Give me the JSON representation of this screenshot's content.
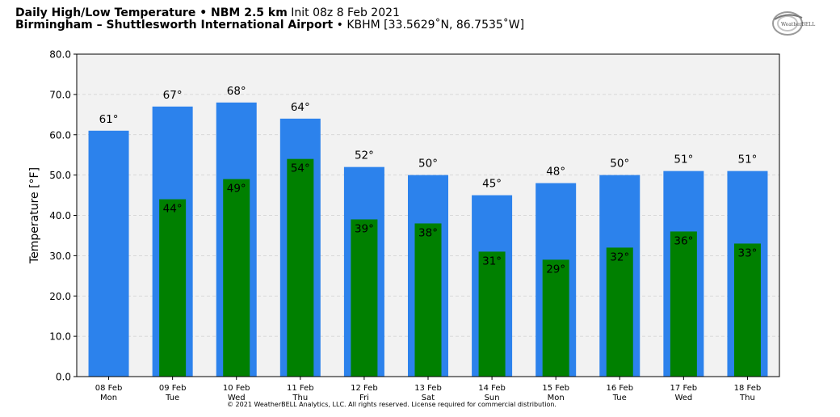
{
  "header": {
    "title_bold": "Daily High/Low Temperature • NBM 2.5 km",
    "title_light": "Init 08z 8 Feb 2021",
    "location_bold": "Birmingham – Shuttlesworth International Airport",
    "location_light": "• KBHM [33.5629˚N, 86.7535˚W]"
  },
  "logo": {
    "text": "WeatherBELL",
    "icon": "weatherbell-logo"
  },
  "footer": {
    "copyright": "© 2021 WeatherBELL Analytics, LLC. All rights reserved. License required for commercial distribution."
  },
  "colors": {
    "high": "#2c82ec",
    "low": "#008000",
    "plot_bg": "#f2f2f2"
  },
  "chart_data": {
    "type": "bar",
    "ylabel": "Temperature [°F]",
    "ylim": [
      0,
      80
    ],
    "yticks": [
      "0.0",
      "10.0",
      "20.0",
      "30.0",
      "40.0",
      "50.0",
      "60.0",
      "70.0",
      "80.0"
    ],
    "grid": true,
    "categories": [
      {
        "date": "08 Feb",
        "day": "Mon"
      },
      {
        "date": "09 Feb",
        "day": "Tue"
      },
      {
        "date": "10 Feb",
        "day": "Wed"
      },
      {
        "date": "11 Feb",
        "day": "Thu"
      },
      {
        "date": "12 Feb",
        "day": "Fri"
      },
      {
        "date": "13 Feb",
        "day": "Sat"
      },
      {
        "date": "14 Feb",
        "day": "Sun"
      },
      {
        "date": "15 Feb",
        "day": "Mon"
      },
      {
        "date": "16 Feb",
        "day": "Tue"
      },
      {
        "date": "17 Feb",
        "day": "Wed"
      },
      {
        "date": "18 Feb",
        "day": "Thu"
      }
    ],
    "series": [
      {
        "values": [
          61,
          67,
          68,
          64,
          52,
          50,
          45,
          48,
          50,
          51,
          51
        ],
        "labels": [
          "61°",
          "67°",
          "68°",
          "64°",
          "52°",
          "50°",
          "45°",
          "48°",
          "50°",
          "51°",
          "51°"
        ]
      },
      {
        "values": [
          null,
          44,
          49,
          54,
          39,
          38,
          31,
          29,
          32,
          36,
          33
        ],
        "labels": [
          "",
          "44°",
          "49°",
          "54°",
          "39°",
          "38°",
          "31°",
          "29°",
          "32°",
          "36°",
          "33°"
        ]
      }
    ]
  }
}
